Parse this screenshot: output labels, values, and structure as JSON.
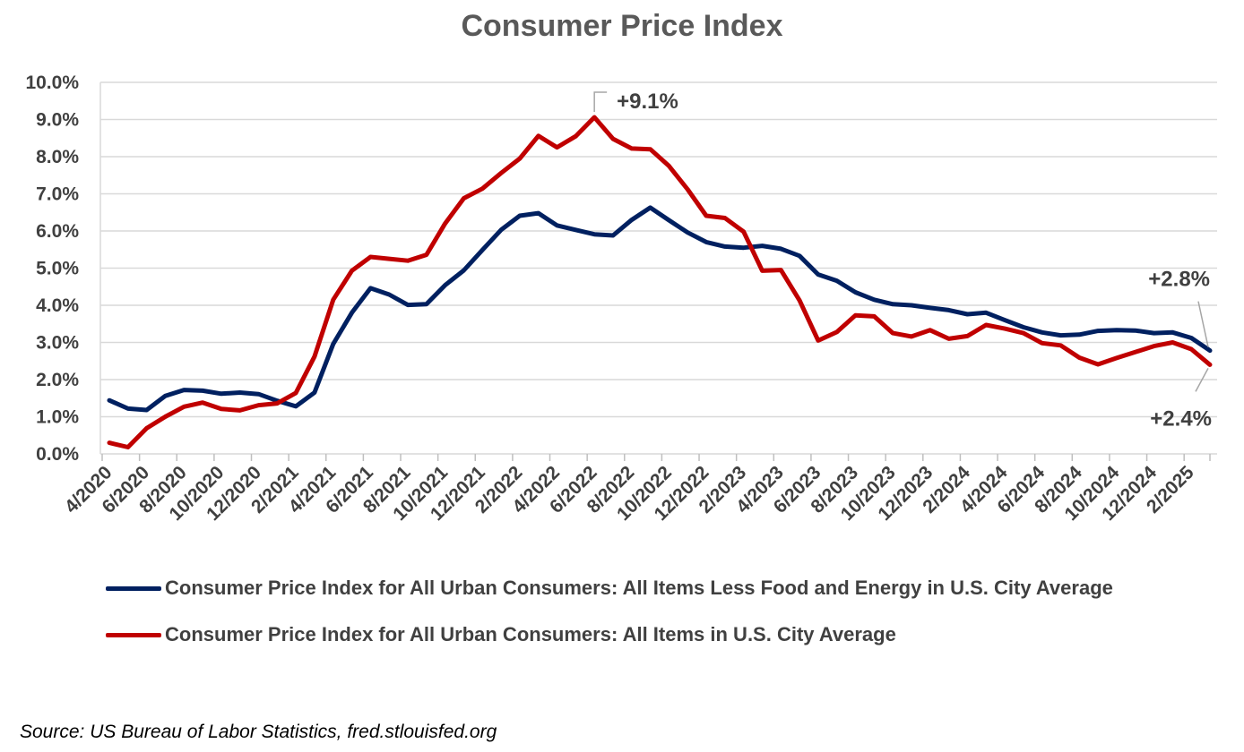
{
  "chart_data": {
    "type": "line",
    "title": "Consumer Price Index",
    "xlabel": "",
    "ylabel": "",
    "ylim": [
      0,
      10
    ],
    "y_ticks": [
      "0.0%",
      "1.0%",
      "2.0%",
      "3.0%",
      "4.0%",
      "5.0%",
      "6.0%",
      "7.0%",
      "8.0%",
      "9.0%",
      "10.0%"
    ],
    "x_tick_labels": [
      "4/2020",
      "6/2020",
      "8/2020",
      "10/2020",
      "12/2020",
      "2/2021",
      "4/2021",
      "6/2021",
      "8/2021",
      "10/2021",
      "12/2021",
      "2/2022",
      "4/2022",
      "6/2022",
      "8/2022",
      "10/2022",
      "12/2022",
      "2/2023",
      "4/2023",
      "6/2023",
      "8/2023",
      "10/2023",
      "12/2023",
      "2/2024",
      "4/2024",
      "6/2024",
      "8/2024",
      "10/2024",
      "12/2024",
      "2/2025"
    ],
    "categories": [
      "4/2020",
      "5/2020",
      "6/2020",
      "7/2020",
      "8/2020",
      "9/2020",
      "10/2020",
      "11/2020",
      "12/2020",
      "1/2021",
      "2/2021",
      "3/2021",
      "4/2021",
      "5/2021",
      "6/2021",
      "7/2021",
      "8/2021",
      "9/2021",
      "10/2021",
      "11/2021",
      "12/2021",
      "1/2022",
      "2/2022",
      "3/2022",
      "4/2022",
      "5/2022",
      "6/2022",
      "7/2022",
      "8/2022",
      "9/2022",
      "10/2022",
      "11/2022",
      "12/2022",
      "1/2023",
      "2/2023",
      "3/2023",
      "4/2023",
      "5/2023",
      "6/2023",
      "7/2023",
      "8/2023",
      "9/2023",
      "10/2023",
      "11/2023",
      "12/2023",
      "1/2024",
      "2/2024",
      "3/2024",
      "4/2024",
      "5/2024",
      "6/2024",
      "7/2024",
      "8/2024",
      "9/2024",
      "10/2024",
      "11/2024",
      "12/2024",
      "1/2025",
      "2/2025",
      "3/2025"
    ],
    "series": [
      {
        "name": "Consumer Price Index for All Urban Consumers: All Items Less Food and Energy in U.S. City Average",
        "color": "#002060",
        "values": [
          1.44,
          1.22,
          1.18,
          1.56,
          1.72,
          1.7,
          1.62,
          1.65,
          1.61,
          1.43,
          1.28,
          1.65,
          2.96,
          3.8,
          4.46,
          4.29,
          4.01,
          4.03,
          4.54,
          4.94,
          5.49,
          6.03,
          6.41,
          6.48,
          6.15,
          6.03,
          5.91,
          5.88,
          6.3,
          6.63,
          6.29,
          5.96,
          5.7,
          5.58,
          5.55,
          5.6,
          5.52,
          5.33,
          4.83,
          4.66,
          4.35,
          4.15,
          4.03,
          4.0,
          3.93,
          3.87,
          3.76,
          3.8,
          3.6,
          3.41,
          3.27,
          3.19,
          3.21,
          3.31,
          3.33,
          3.32,
          3.25,
          3.27,
          3.12,
          2.78
        ]
      },
      {
        "name": "Consumer Price Index for All Urban Consumers: All Items in U.S. City Average",
        "color": "#C00000",
        "values": [
          0.3,
          0.18,
          0.69,
          1.0,
          1.27,
          1.38,
          1.21,
          1.17,
          1.31,
          1.36,
          1.64,
          2.62,
          4.15,
          4.93,
          5.3,
          5.25,
          5.2,
          5.36,
          6.2,
          6.88,
          7.14,
          7.56,
          7.95,
          8.56,
          8.25,
          8.55,
          9.06,
          8.48,
          8.22,
          8.2,
          7.75,
          7.12,
          6.41,
          6.35,
          5.98,
          4.93,
          4.95,
          4.13,
          3.05,
          3.28,
          3.73,
          3.7,
          3.25,
          3.16,
          3.33,
          3.1,
          3.17,
          3.47,
          3.37,
          3.25,
          2.98,
          2.92,
          2.59,
          2.41,
          2.58,
          2.74,
          2.9,
          3.0,
          2.82,
          2.4
        ]
      }
    ],
    "annotations": [
      {
        "text": "+9.1%",
        "series": 1,
        "category": "6/2022"
      },
      {
        "text": "+2.8%",
        "series": 0,
        "category": "3/2025"
      },
      {
        "text": "+2.4%",
        "series": 1,
        "category": "3/2025"
      }
    ]
  },
  "source": "Source: US Bureau of Labor Statistics, fred.stlouisfed.org"
}
